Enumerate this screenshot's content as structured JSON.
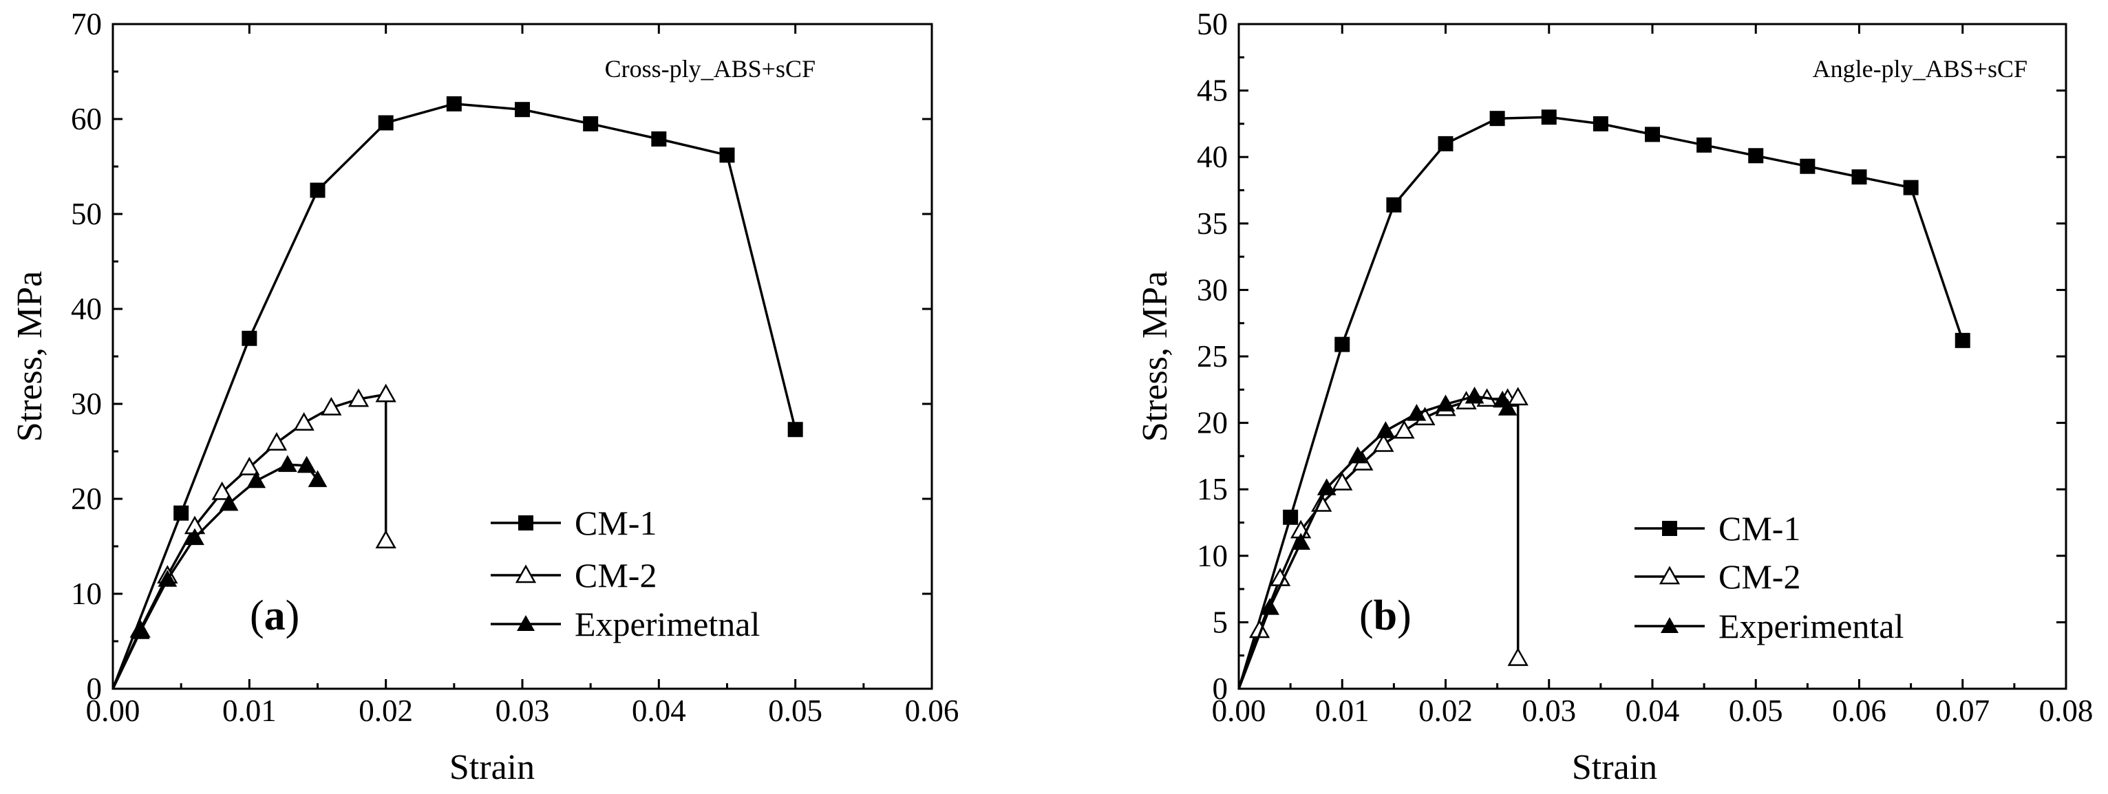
{
  "chart_data": [
    {
      "type": "line",
      "panel_label": "a",
      "annotation": "Cross-ply_ABS+sCF",
      "xlabel": "Strain",
      "ylabel": "Stress,  MPa",
      "xlim": [
        0,
        0.06
      ],
      "ylim": [
        0,
        70
      ],
      "xticks": [
        "0.00",
        "0.01",
        "0.02",
        "0.03",
        "0.04",
        "0.05",
        "0.06"
      ],
      "yticks": [
        "0",
        "10",
        "20",
        "30",
        "40",
        "50",
        "60",
        "70"
      ],
      "legend_position": "bottom-center",
      "series": [
        {
          "name": "CM-1",
          "marker": "square-filled",
          "x": [
            0,
            0.005,
            0.01,
            0.015,
            0.02,
            0.025,
            0.03,
            0.035,
            0.04,
            0.045,
            0.05
          ],
          "y": [
            0,
            18.5,
            36.9,
            52.5,
            59.6,
            61.6,
            61.0,
            59.5,
            57.9,
            56.2,
            27.3
          ]
        },
        {
          "name": "CM-2",
          "marker": "triangle-open",
          "x": [
            0,
            0.002,
            0.004,
            0.006,
            0.008,
            0.01,
            0.012,
            0.014,
            0.016,
            0.018,
            0.02,
            0.02
          ],
          "y": [
            0,
            6.2,
            11.9,
            17.1,
            20.7,
            23.3,
            25.9,
            28.0,
            29.6,
            30.5,
            31.0,
            15.6
          ]
        },
        {
          "name": "Experimetnal",
          "marker": "triangle-filled",
          "x": [
            0,
            0.002,
            0.004,
            0.006,
            0.0085,
            0.0105,
            0.0128,
            0.0142,
            0.015
          ],
          "y": [
            0,
            6.0,
            11.5,
            15.9,
            19.5,
            21.9,
            23.6,
            23.5,
            22.0
          ]
        }
      ]
    },
    {
      "type": "line",
      "panel_label": "b",
      "annotation": "Angle-ply_ABS+sCF",
      "xlabel": "Strain",
      "ylabel": "Stress,  MPa",
      "xlim": [
        0,
        0.08
      ],
      "ylim": [
        0,
        50
      ],
      "xticks": [
        "0.00",
        "0.01",
        "0.02",
        "0.03",
        "0.04",
        "0.05",
        "0.06",
        "0.07",
        "0.08"
      ],
      "yticks": [
        "0",
        "5",
        "10",
        "15",
        "20",
        "25",
        "30",
        "35",
        "40",
        "45",
        "50"
      ],
      "legend_position": "bottom-center",
      "series": [
        {
          "name": "CM-1",
          "marker": "square-filled",
          "x": [
            0,
            0.005,
            0.01,
            0.015,
            0.02,
            0.025,
            0.03,
            0.035,
            0.04,
            0.045,
            0.05,
            0.055,
            0.06,
            0.065,
            0.07
          ],
          "y": [
            0,
            12.9,
            25.9,
            36.4,
            41.0,
            42.9,
            43.0,
            42.5,
            41.7,
            40.9,
            40.1,
            39.3,
            38.5,
            37.7,
            26.2
          ]
        },
        {
          "name": "CM-2",
          "marker": "triangle-open",
          "x": [
            0,
            0.002,
            0.004,
            0.006,
            0.008,
            0.01,
            0.012,
            0.014,
            0.016,
            0.018,
            0.02,
            0.022,
            0.024,
            0.026,
            0.027,
            0.027
          ],
          "y": [
            0,
            4.4,
            8.3,
            11.9,
            13.9,
            15.5,
            17.0,
            18.4,
            19.4,
            20.4,
            21.1,
            21.6,
            21.8,
            21.8,
            21.9,
            2.3
          ]
        },
        {
          "name": "Experimental",
          "marker": "triangle-filled",
          "x": [
            0,
            0.003,
            0.006,
            0.0085,
            0.0115,
            0.0142,
            0.0172,
            0.02,
            0.0228,
            0.0255,
            0.026
          ],
          "y": [
            0,
            6.1,
            11.0,
            15.1,
            17.5,
            19.4,
            20.7,
            21.4,
            22.0,
            21.7,
            21.1
          ]
        }
      ]
    }
  ]
}
